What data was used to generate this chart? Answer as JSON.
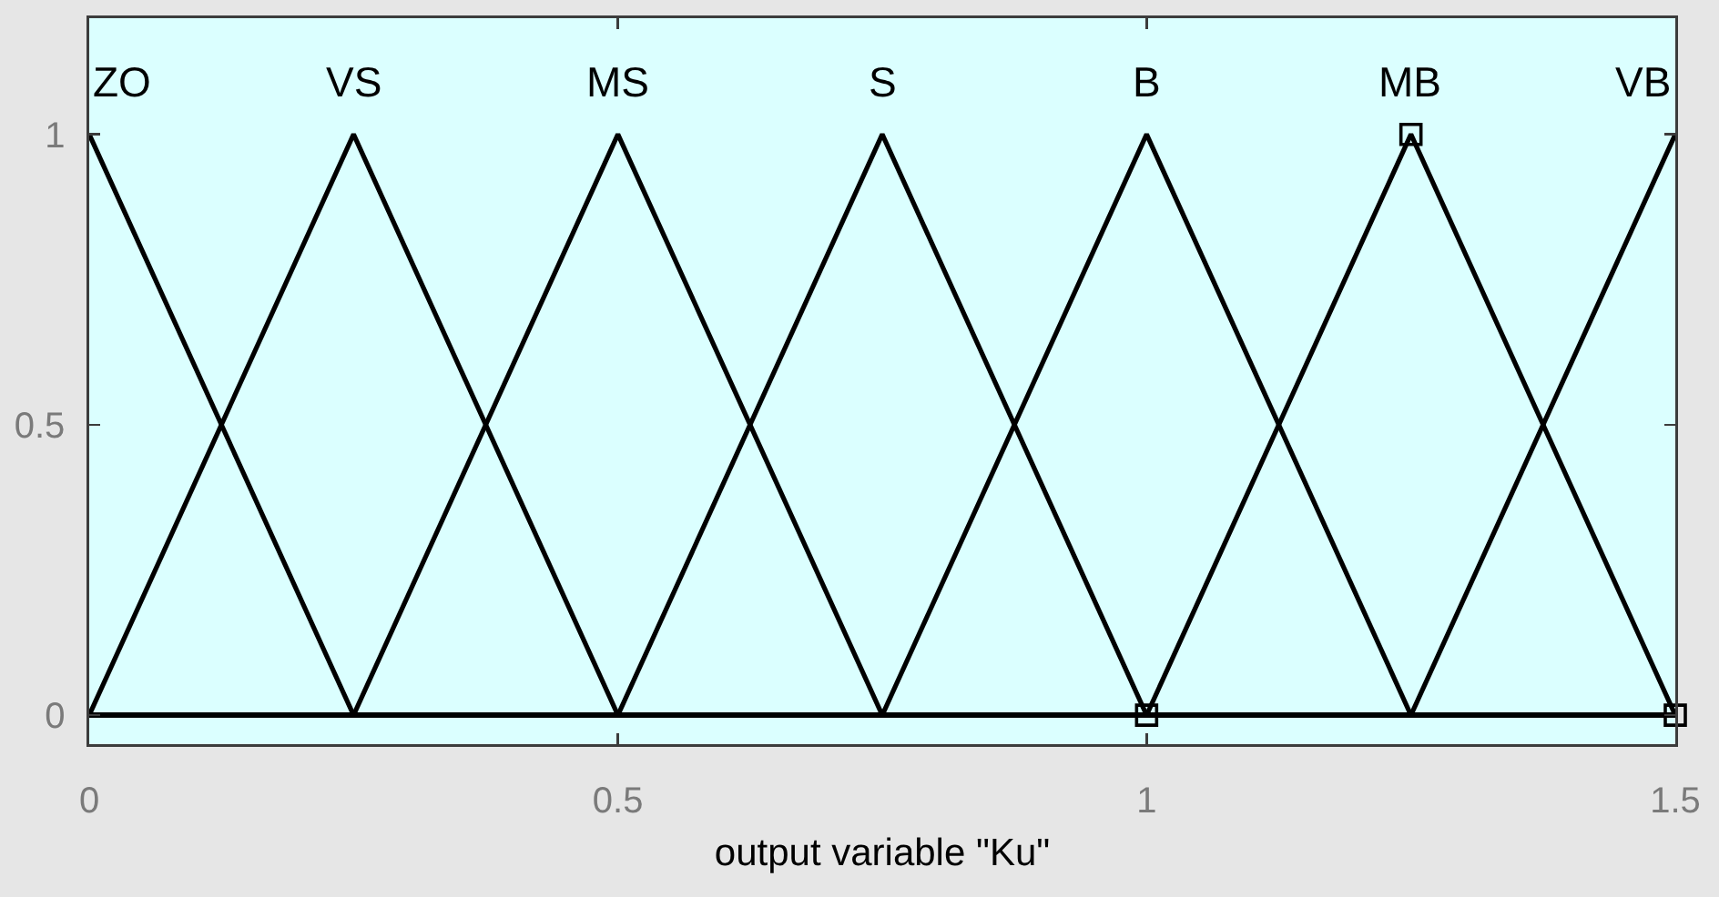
{
  "chart_data": {
    "type": "line",
    "xlabel": "output variable \"Ku\"",
    "xlim": [
      0,
      1.5
    ],
    "xticks": [
      0,
      0.5,
      1,
      1.5
    ],
    "ylim": [
      -0.05,
      1.2
    ],
    "yticks": [
      0,
      0.5,
      1
    ],
    "grid": false,
    "legend": false,
    "series": [
      {
        "name": "ZO",
        "color": "#000000",
        "x": [
          0,
          0.25,
          1.5
        ],
        "values": [
          1,
          0,
          0
        ]
      },
      {
        "name": "VS",
        "color": "#000000",
        "x": [
          0,
          0.25,
          0.5,
          1.5
        ],
        "values": [
          0,
          1,
          0,
          0
        ]
      },
      {
        "name": "MS",
        "color": "#000000",
        "x": [
          0,
          0.25,
          0.5,
          0.75,
          1.5
        ],
        "values": [
          0,
          0,
          1,
          0,
          0
        ]
      },
      {
        "name": "S",
        "color": "#000000",
        "x": [
          0,
          0.5,
          0.75,
          1,
          1.5
        ],
        "values": [
          0,
          0,
          1,
          0,
          0
        ]
      },
      {
        "name": "B",
        "color": "#000000",
        "x": [
          0,
          0.75,
          1,
          1.25,
          1.5
        ],
        "values": [
          0,
          0,
          1,
          0,
          0
        ]
      },
      {
        "name": "MB",
        "color": "#000000",
        "x": [
          0,
          1,
          1.25,
          1.5
        ],
        "values": [
          0,
          0,
          1,
          0
        ]
      },
      {
        "name": "VB",
        "color": "#000000",
        "x": [
          0,
          1.25,
          1.5
        ],
        "values": [
          0,
          0,
          1
        ]
      },
      {
        "type": "scatter",
        "color": "#000000",
        "x": [
          1,
          1.25,
          1.5
        ],
        "values": [
          0,
          1,
          0
        ],
        "marker": "square"
      }
    ]
  }
}
